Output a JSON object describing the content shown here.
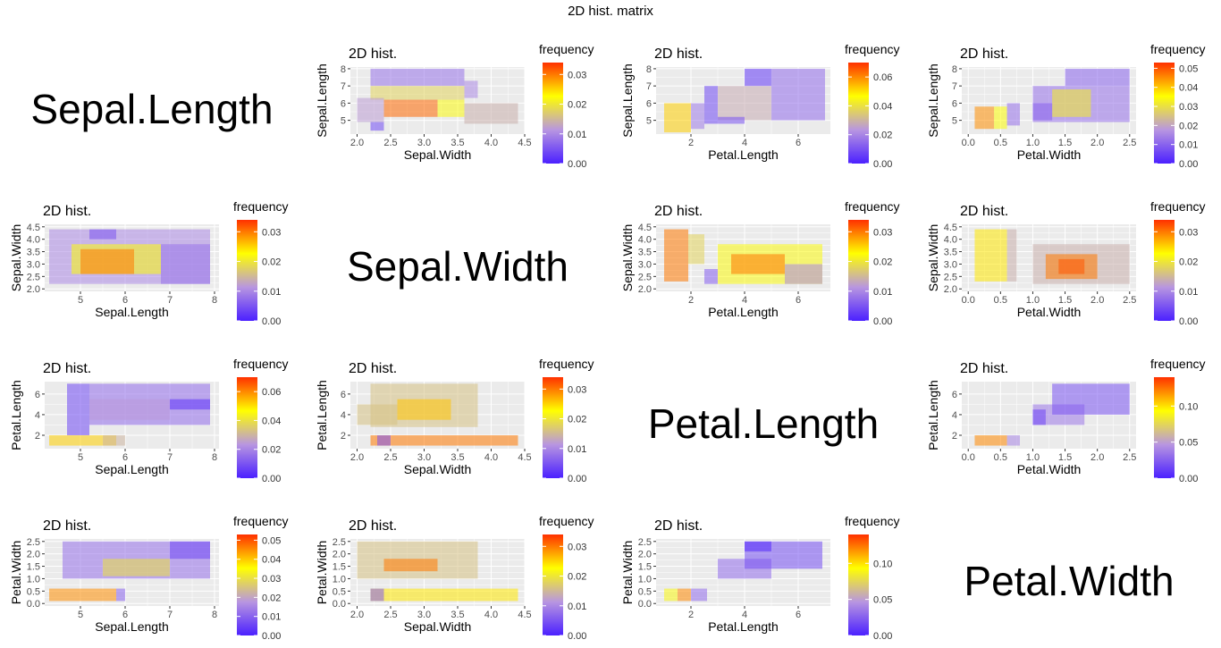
{
  "title": "2D hist. matrix",
  "colors": {
    "panel_bg": "#ebebeb",
    "grid": "#ffffff",
    "scale": [
      "#4b20ff",
      "#b896e0",
      "#ffff00",
      "#ff3000"
    ]
  },
  "variables": [
    "Sepal.Length",
    "Sepal.Width",
    "Petal.Length",
    "Petal.Width"
  ],
  "chart_data": [
    {
      "type": "heatmap",
      "title": "2D hist.",
      "xlabel": "Sepal.Width",
      "ylabel": "Sepal.Length",
      "xlim": [
        1.9,
        4.5
      ],
      "ylim": [
        4.2,
        8.1
      ],
      "xticks": [
        "2.0",
        "2.5",
        "3.0",
        "3.5",
        "4.0",
        "4.5"
      ],
      "yticks": [
        "5",
        "6",
        "7",
        "8"
      ],
      "legend_title": "frequency",
      "legend_max": 0.034,
      "legend_ticks": [
        "0.00",
        "0.01",
        "0.02",
        "0.03"
      ],
      "cells": [
        [
          2.2,
          3.6,
          7.0,
          8.0,
          0.008
        ],
        [
          2.2,
          3.6,
          6.2,
          7.0,
          0.018
        ],
        [
          2.4,
          3.2,
          5.2,
          6.2,
          0.031
        ],
        [
          3.2,
          3.6,
          5.2,
          6.2,
          0.022
        ],
        [
          2.0,
          2.4,
          4.9,
          6.3,
          0.012
        ],
        [
          3.6,
          4.4,
          4.8,
          6.0,
          0.014
        ],
        [
          3.6,
          3.8,
          6.3,
          7.3,
          0.01
        ],
        [
          2.2,
          2.4,
          4.4,
          4.9,
          0.004
        ]
      ]
    },
    {
      "type": "heatmap",
      "title": "2D hist.",
      "xlabel": "Petal.Length",
      "ylabel": "Sepal.Length",
      "xlim": [
        0.7,
        7.2
      ],
      "ylim": [
        4.2,
        8.1
      ],
      "xticks": [
        "2",
        "4",
        "6"
      ],
      "yticks": [
        "5",
        "6",
        "7",
        "8"
      ],
      "legend_title": "frequency",
      "legend_max": 0.07,
      "legend_ticks": [
        "0.00",
        "0.02",
        "0.04",
        "0.06"
      ],
      "cells": [
        [
          1.0,
          2.0,
          4.3,
          6.0,
          0.052
        ],
        [
          2.0,
          2.5,
          4.5,
          6.0,
          0.018
        ],
        [
          2.5,
          3.0,
          4.8,
          7.0,
          0.008
        ],
        [
          3.0,
          5.0,
          5.0,
          7.0,
          0.028
        ],
        [
          5.0,
          7.0,
          5.0,
          8.0,
          0.015
        ],
        [
          4.0,
          5.0,
          7.0,
          8.0,
          0.005
        ],
        [
          3.0,
          4.0,
          4.8,
          5.2,
          0.01
        ]
      ]
    },
    {
      "type": "heatmap",
      "title": "2D hist.",
      "xlabel": "Petal.Width",
      "ylabel": "Sepal.Length",
      "xlim": [
        -0.1,
        2.6
      ],
      "ylim": [
        4.2,
        8.1
      ],
      "xticks": [
        "0.0",
        "0.5",
        "1.0",
        "1.5",
        "2.0",
        "2.5"
      ],
      "yticks": [
        "5",
        "6",
        "7",
        "8"
      ],
      "legend_title": "frequency",
      "legend_max": 0.053,
      "legend_ticks": [
        "0.00",
        "0.01",
        "0.02",
        "0.03",
        "0.04",
        "0.05"
      ],
      "cells": [
        [
          0.1,
          0.4,
          4.5,
          5.8,
          0.045
        ],
        [
          0.4,
          0.6,
          4.5,
          5.8,
          0.035
        ],
        [
          0.6,
          0.8,
          4.7,
          6.0,
          0.012
        ],
        [
          1.0,
          2.5,
          4.9,
          7.0,
          0.012
        ],
        [
          1.3,
          1.9,
          5.2,
          6.8,
          0.032
        ],
        [
          1.5,
          2.5,
          7.0,
          8.0,
          0.01
        ],
        [
          1.0,
          1.3,
          5.0,
          6.0,
          0.01
        ]
      ]
    },
    {
      "type": "heatmap",
      "title": "2D hist.",
      "xlabel": "Sepal.Length",
      "ylabel": "Sepal.Width",
      "xlim": [
        4.2,
        8.1
      ],
      "ylim": [
        1.9,
        4.6
      ],
      "xticks": [
        "5",
        "6",
        "7",
        "8"
      ],
      "yticks": [
        "2.0",
        "2.5",
        "3.0",
        "3.5",
        "4.0",
        "4.5"
      ],
      "legend_title": "frequency",
      "legend_max": 0.034,
      "legend_ticks": [
        "0.00",
        "0.01",
        "0.02",
        "0.03"
      ],
      "cells": [
        [
          4.3,
          7.9,
          2.2,
          4.4,
          0.01
        ],
        [
          4.8,
          6.8,
          2.6,
          3.8,
          0.022
        ],
        [
          5.0,
          6.2,
          2.6,
          3.6,
          0.03
        ],
        [
          6.8,
          7.9,
          2.2,
          3.8,
          0.008
        ],
        [
          5.2,
          5.8,
          4.0,
          4.4,
          0.005
        ]
      ]
    },
    {
      "type": "heatmap",
      "title": "2D hist.",
      "xlabel": "Petal.Length",
      "ylabel": "Sepal.Width",
      "xlim": [
        0.7,
        7.2
      ],
      "ylim": [
        1.9,
        4.6
      ],
      "xticks": [
        "2",
        "4",
        "6"
      ],
      "yticks": [
        "2.0",
        "2.5",
        "3.0",
        "3.5",
        "4.0",
        "4.5"
      ],
      "legend_title": "frequency",
      "legend_max": 0.034,
      "legend_ticks": [
        "0.00",
        "0.01",
        "0.02",
        "0.03"
      ],
      "cells": [
        [
          1.0,
          1.9,
          2.3,
          4.4,
          0.03
        ],
        [
          1.9,
          2.5,
          3.0,
          4.2,
          0.018
        ],
        [
          3.0,
          6.9,
          2.2,
          3.8,
          0.022
        ],
        [
          3.5,
          5.5,
          2.6,
          3.4,
          0.03
        ],
        [
          2.5,
          3.0,
          2.2,
          2.8,
          0.006
        ],
        [
          5.5,
          6.9,
          2.2,
          3.0,
          0.01
        ]
      ]
    },
    {
      "type": "heatmap",
      "title": "2D hist.",
      "xlabel": "Petal.Width",
      "ylabel": "Sepal.Width",
      "xlim": [
        -0.1,
        2.6
      ],
      "ylim": [
        1.9,
        4.6
      ],
      "xticks": [
        "0.0",
        "0.5",
        "1.0",
        "1.5",
        "2.0",
        "2.5"
      ],
      "yticks": [
        "2.0",
        "2.5",
        "3.0",
        "3.5",
        "4.0",
        "4.5"
      ],
      "legend_title": "frequency",
      "legend_max": 0.034,
      "legend_ticks": [
        "0.00",
        "0.01",
        "0.02",
        "0.03"
      ],
      "cells": [
        [
          0.1,
          0.6,
          2.3,
          4.4,
          0.024
        ],
        [
          0.6,
          0.75,
          2.3,
          4.4,
          0.014
        ],
        [
          1.0,
          2.5,
          2.2,
          3.8,
          0.014
        ],
        [
          1.2,
          2.0,
          2.4,
          3.4,
          0.03
        ],
        [
          1.4,
          1.8,
          2.6,
          3.2,
          0.032
        ]
      ]
    },
    {
      "type": "heatmap",
      "title": "2D hist.",
      "xlabel": "Sepal.Length",
      "ylabel": "Petal.Length",
      "xlim": [
        4.2,
        8.1
      ],
      "ylim": [
        0.7,
        7.2
      ],
      "xticks": [
        "5",
        "6",
        "7",
        "8"
      ],
      "yticks": [
        "2",
        "4",
        "6"
      ],
      "legend_title": "frequency",
      "legend_max": 0.07,
      "legend_ticks": [
        "0.00",
        "0.02",
        "0.04",
        "0.06"
      ],
      "cells": [
        [
          4.3,
          5.8,
          1.0,
          2.0,
          0.052
        ],
        [
          4.7,
          5.2,
          2.0,
          7.0,
          0.008
        ],
        [
          5.2,
          7.9,
          3.0,
          7.0,
          0.015
        ],
        [
          5.2,
          7.0,
          3.5,
          5.5,
          0.024
        ],
        [
          7.0,
          7.9,
          4.5,
          5.5,
          0.004
        ],
        [
          5.5,
          6.0,
          1.0,
          2.0,
          0.03
        ]
      ]
    },
    {
      "type": "heatmap",
      "title": "2D hist.",
      "xlabel": "Sepal.Width",
      "ylabel": "Petal.Length",
      "xlim": [
        1.9,
        4.5
      ],
      "ylim": [
        0.7,
        7.2
      ],
      "xticks": [
        "2.0",
        "2.5",
        "3.0",
        "3.5",
        "4.0",
        "4.5"
      ],
      "yticks": [
        "2",
        "4",
        "6"
      ],
      "legend_title": "frequency",
      "legend_max": 0.034,
      "legend_ticks": [
        "0.00",
        "0.01",
        "0.02",
        "0.03"
      ],
      "cells": [
        [
          2.2,
          4.4,
          1.0,
          2.0,
          0.03
        ],
        [
          2.2,
          3.8,
          2.8,
          7.0,
          0.016
        ],
        [
          2.6,
          3.4,
          3.5,
          5.5,
          0.026
        ],
        [
          2.0,
          2.6,
          3.0,
          5.0,
          0.016
        ],
        [
          2.3,
          2.5,
          1.0,
          2.0,
          0.005
        ]
      ]
    },
    {
      "type": "heatmap",
      "title": "2D hist.",
      "xlabel": "Petal.Width",
      "ylabel": "Petal.Length",
      "xlim": [
        -0.1,
        2.6
      ],
      "ylim": [
        0.7,
        7.2
      ],
      "xticks": [
        "0.0",
        "0.5",
        "1.0",
        "1.5",
        "2.0",
        "2.5"
      ],
      "yticks": [
        "2",
        "4",
        "6"
      ],
      "legend_title": "frequency",
      "legend_max": 0.14,
      "legend_ticks": [
        "0.05",
        "0.10"
      ],
      "legend_tick_values": [
        0.05,
        0.1
      ],
      "legend_zero": "0.00",
      "cells": [
        [
          0.1,
          0.6,
          1.0,
          2.0,
          0.12
        ],
        [
          0.6,
          0.8,
          1.0,
          2.0,
          0.04
        ],
        [
          1.0,
          1.8,
          3.0,
          5.0,
          0.035
        ],
        [
          1.3,
          2.5,
          4.0,
          7.0,
          0.02
        ],
        [
          1.0,
          1.2,
          3.0,
          4.5,
          0.015
        ]
      ]
    },
    {
      "type": "heatmap",
      "title": "2D hist.",
      "xlabel": "Sepal.Length",
      "ylabel": "Petal.Width",
      "xlim": [
        4.2,
        8.1
      ],
      "ylim": [
        -0.1,
        2.6
      ],
      "xticks": [
        "5",
        "6",
        "7",
        "8"
      ],
      "yticks": [
        "0.0",
        "0.5",
        "1.0",
        "1.5",
        "2.0",
        "2.5"
      ],
      "legend_title": "frequency",
      "legend_max": 0.053,
      "legend_ticks": [
        "0.00",
        "0.01",
        "0.02",
        "0.03",
        "0.04",
        "0.05"
      ],
      "cells": [
        [
          4.3,
          5.8,
          0.1,
          0.6,
          0.045
        ],
        [
          4.6,
          7.9,
          1.0,
          2.5,
          0.012
        ],
        [
          5.5,
          7.0,
          1.1,
          1.8,
          0.03
        ],
        [
          5.8,
          6.0,
          0.1,
          0.6,
          0.01
        ],
        [
          7.0,
          7.9,
          1.8,
          2.5,
          0.006
        ]
      ]
    },
    {
      "type": "heatmap",
      "title": "2D hist.",
      "xlabel": "Sepal.Width",
      "ylabel": "Petal.Width",
      "xlim": [
        1.9,
        4.5
      ],
      "ylim": [
        -0.1,
        2.6
      ],
      "xticks": [
        "2.0",
        "2.5",
        "3.0",
        "3.5",
        "4.0",
        "4.5"
      ],
      "yticks": [
        "0.0",
        "0.5",
        "1.0",
        "1.5",
        "2.0",
        "2.5"
      ],
      "legend_title": "frequency",
      "legend_max": 0.034,
      "legend_ticks": [
        "0.00",
        "0.01",
        "0.02",
        "0.03"
      ],
      "cells": [
        [
          2.0,
          3.8,
          1.0,
          2.5,
          0.016
        ],
        [
          2.4,
          3.2,
          1.3,
          1.8,
          0.03
        ],
        [
          2.2,
          4.4,
          0.1,
          0.6,
          0.024
        ],
        [
          2.2,
          2.4,
          0.1,
          0.6,
          0.006
        ]
      ]
    },
    {
      "type": "heatmap",
      "title": "2D hist.",
      "xlabel": "Petal.Length",
      "ylabel": "Petal.Width",
      "xlim": [
        0.7,
        7.2
      ],
      "ylim": [
        -0.1,
        2.6
      ],
      "xticks": [
        "2",
        "4",
        "6"
      ],
      "yticks": [
        "0.0",
        "0.5",
        "1.0",
        "1.5",
        "2.0",
        "2.5"
      ],
      "legend_title": "frequency",
      "legend_max": 0.14,
      "legend_ticks": [
        "0.05",
        "0.10"
      ],
      "legend_tick_values": [
        0.05,
        0.1
      ],
      "legend_zero": "0.00",
      "cells": [
        [
          1.0,
          1.5,
          0.1,
          0.6,
          0.09
        ],
        [
          1.5,
          2.0,
          0.1,
          0.6,
          0.12
        ],
        [
          2.0,
          2.6,
          0.1,
          0.6,
          0.03
        ],
        [
          3.0,
          5.0,
          1.0,
          1.8,
          0.03
        ],
        [
          4.0,
          6.9,
          1.4,
          2.5,
          0.018
        ],
        [
          4.0,
          5.0,
          2.1,
          2.5,
          0.004
        ]
      ]
    }
  ]
}
